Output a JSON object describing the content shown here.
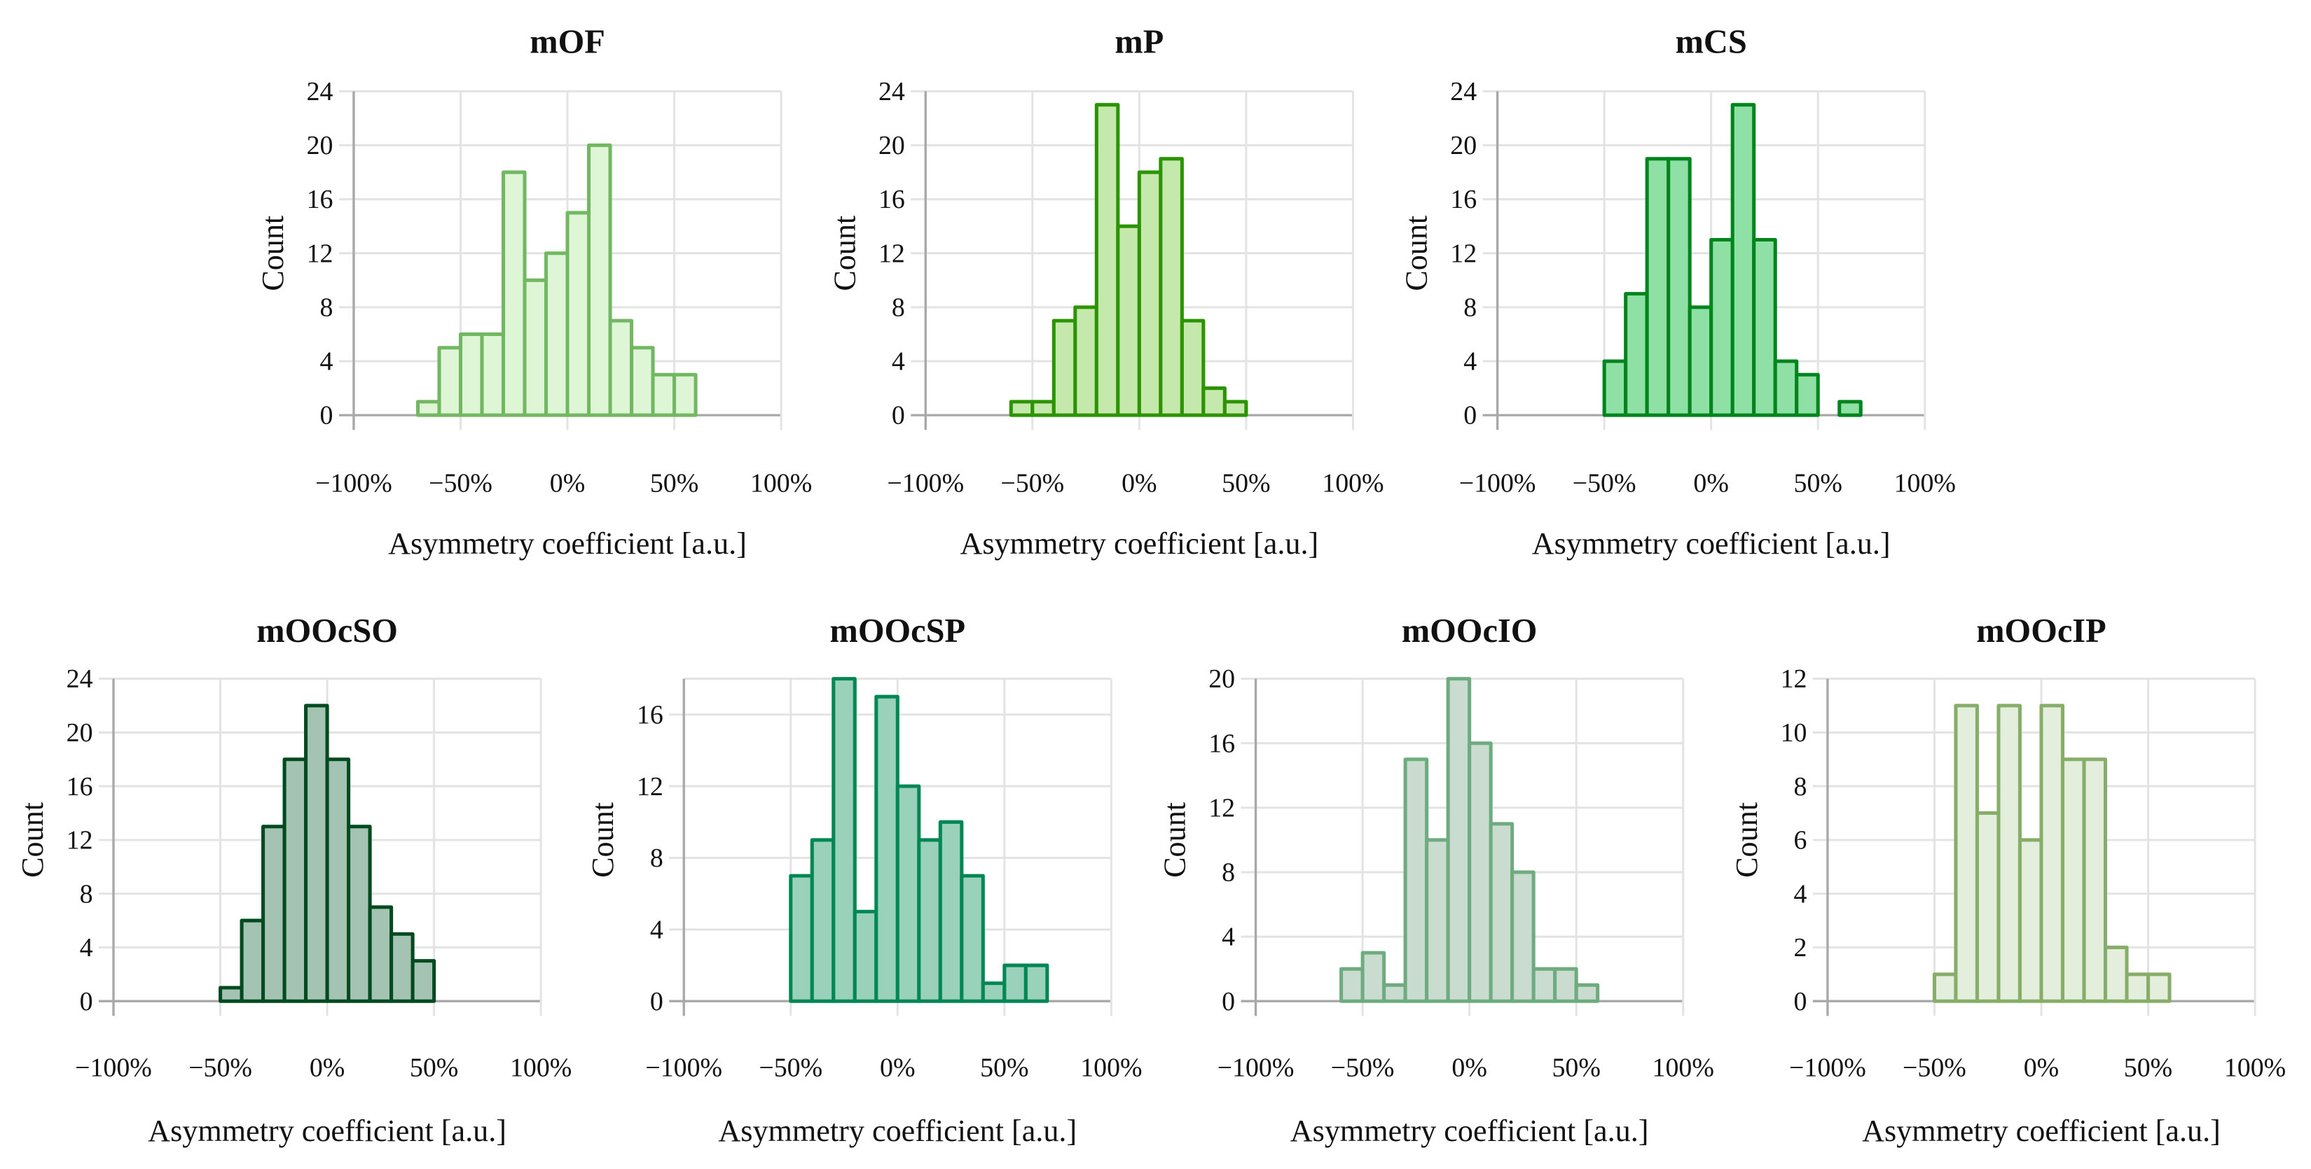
{
  "chart_data": [
    {
      "type": "bar",
      "title": "mOF",
      "xlabel": "Asymmetry coefficient [a.u.]",
      "ylabel": "Count",
      "x_tick_labels": [
        "−100%",
        "−50%",
        "0%",
        "50%",
        "100%"
      ],
      "xlim": [
        -100,
        100
      ],
      "ylim": [
        0,
        24
      ],
      "y_ticks": [
        0,
        4,
        8,
        12,
        16,
        20,
        24
      ],
      "bin_width": 10,
      "bin_start": -70,
      "values": [
        1,
        5,
        6,
        6,
        18,
        10,
        12,
        15,
        20,
        7,
        5,
        3,
        3
      ],
      "stroke": "#72b862",
      "fill": "#def5d6"
    },
    {
      "type": "bar",
      "title": "mP",
      "xlabel": "Asymmetry coefficient [a.u.]",
      "ylabel": "Count",
      "x_tick_labels": [
        "−100%",
        "−50%",
        "0%",
        "50%",
        "100%"
      ],
      "xlim": [
        -100,
        100
      ],
      "ylim": [
        0,
        24
      ],
      "y_ticks": [
        0,
        4,
        8,
        12,
        16,
        20,
        24
      ],
      "bin_width": 10,
      "bin_start": -60,
      "values": [
        1,
        1,
        7,
        8,
        23,
        14,
        18,
        19,
        7,
        2,
        1
      ],
      "stroke": "#2b9400",
      "fill": "#c5e8ac"
    },
    {
      "type": "bar",
      "title": "mCS",
      "xlabel": "Asymmetry coefficient [a.u.]",
      "ylabel": "Count",
      "x_tick_labels": [
        "−100%",
        "−50%",
        "0%",
        "50%",
        "100%"
      ],
      "xlim": [
        -100,
        100
      ],
      "ylim": [
        0,
        24
      ],
      "y_ticks": [
        0,
        4,
        8,
        12,
        16,
        20,
        24
      ],
      "bin_width": 10,
      "bin_start": -50,
      "values": [
        4,
        9,
        19,
        19,
        8,
        13,
        23,
        13,
        4,
        3,
        0,
        1
      ],
      "stroke": "#00851c",
      "fill": "#8ee0a4"
    },
    {
      "type": "bar",
      "title": "mOOcSO",
      "xlabel": "Asymmetry coefficient [a.u.]",
      "ylabel": "Count",
      "x_tick_labels": [
        "−100%",
        "−50%",
        "0%",
        "50%",
        "100%"
      ],
      "xlim": [
        -100,
        100
      ],
      "ylim": [
        0,
        24
      ],
      "y_ticks": [
        0,
        4,
        8,
        12,
        16,
        20,
        24
      ],
      "bin_width": 10,
      "bin_start": -50,
      "values": [
        1,
        6,
        13,
        18,
        22,
        18,
        13,
        7,
        5,
        3
      ],
      "stroke": "#004a1f",
      "fill": "#a5c3b2"
    },
    {
      "type": "bar",
      "title": "mOOcSP",
      "xlabel": "Asymmetry coefficient [a.u.]",
      "ylabel": "Count",
      "x_tick_labels": [
        "−100%",
        "−50%",
        "0%",
        "50%",
        "100%"
      ],
      "xlim": [
        -100,
        100
      ],
      "ylim": [
        0,
        18
      ],
      "y_ticks": [
        0,
        4,
        8,
        12,
        16
      ],
      "bin_width": 10,
      "bin_start": -50,
      "values": [
        7,
        9,
        18,
        5,
        17,
        12,
        9,
        10,
        7,
        1,
        2,
        2
      ],
      "stroke": "#008754",
      "fill": "#99d1bb"
    },
    {
      "type": "bar",
      "title": "mOOcIO",
      "xlabel": "Asymmetry coefficient [a.u.]",
      "ylabel": "Count",
      "x_tick_labels": [
        "−100%",
        "−50%",
        "0%",
        "50%",
        "100%"
      ],
      "xlim": [
        -100,
        100
      ],
      "ylim": [
        0,
        20
      ],
      "y_ticks": [
        0,
        4,
        8,
        12,
        16,
        20
      ],
      "bin_width": 10,
      "bin_start": -60,
      "values": [
        2,
        3,
        1,
        15,
        10,
        20,
        16,
        11,
        8,
        2,
        2,
        1
      ],
      "stroke": "#6eab7e",
      "fill": "#c9dccf"
    },
    {
      "type": "bar",
      "title": "mOOcIP",
      "xlabel": "Asymmetry coefficient [a.u.]",
      "ylabel": "Count",
      "x_tick_labels": [
        "−100%",
        "−50%",
        "0%",
        "50%",
        "100%"
      ],
      "xlim": [
        -100,
        100
      ],
      "ylim": [
        0,
        12
      ],
      "y_ticks": [
        0,
        2,
        4,
        6,
        8,
        10,
        12
      ],
      "bin_width": 10,
      "bin_start": -50,
      "values": [
        1,
        11,
        7,
        11,
        6,
        11,
        9,
        9,
        2,
        1,
        1
      ],
      "stroke": "#86ae68",
      "fill": "#e3eedc"
    }
  ]
}
